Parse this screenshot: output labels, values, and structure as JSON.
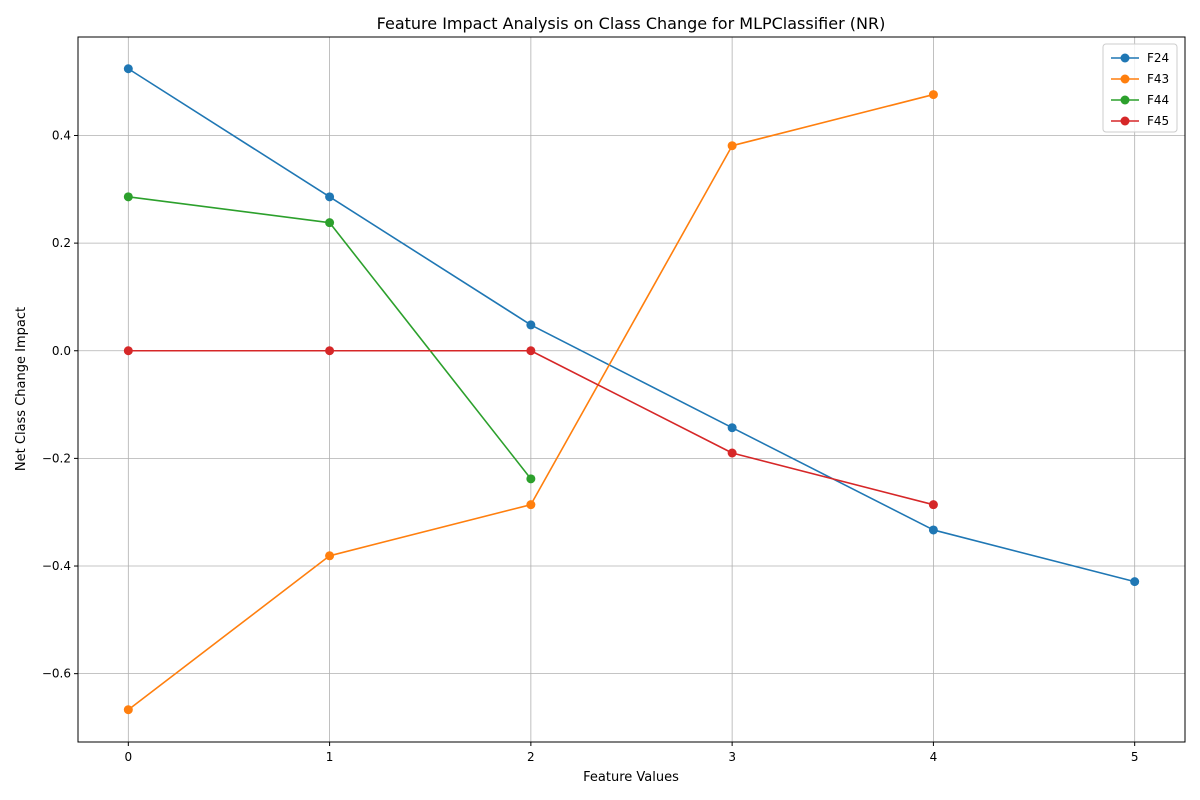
{
  "chart_data": {
    "type": "line",
    "title": "Feature Impact Analysis on Class Change for MLPClassifier (NR)",
    "xlabel": "Feature Values",
    "ylabel": "Net Class Change Impact",
    "xlim": [
      -0.25,
      5.25
    ],
    "ylim": [
      -0.727,
      0.583
    ],
    "xticks": [
      0,
      1,
      2,
      3,
      4,
      5
    ],
    "xtick_labels": [
      "0",
      "1",
      "2",
      "3",
      "4",
      "5"
    ],
    "yticks": [
      -0.6,
      -0.4,
      -0.2,
      0.0,
      0.2,
      0.4
    ],
    "ytick_labels": [
      "−0.6",
      "−0.4",
      "−0.2",
      "0.0",
      "0.2",
      "0.4"
    ],
    "grid": true,
    "legend_position": "top-right",
    "series": [
      {
        "name": "F24",
        "color": "#1f77b4",
        "x": [
          0,
          1,
          2,
          3,
          4,
          5
        ],
        "y": [
          0.524,
          0.286,
          0.048,
          -0.143,
          -0.333,
          -0.429
        ]
      },
      {
        "name": "F43",
        "color": "#ff7f0e",
        "x": [
          0,
          1,
          2,
          3,
          4
        ],
        "y": [
          -0.667,
          -0.381,
          -0.286,
          0.381,
          0.476
        ]
      },
      {
        "name": "F44",
        "color": "#2ca02c",
        "x": [
          0,
          1,
          2
        ],
        "y": [
          0.286,
          0.238,
          -0.238
        ]
      },
      {
        "name": "F45",
        "color": "#d62728",
        "x": [
          0,
          1,
          2,
          3,
          4
        ],
        "y": [
          0.0,
          0.0,
          0.0,
          -0.19,
          -0.286
        ]
      }
    ]
  }
}
